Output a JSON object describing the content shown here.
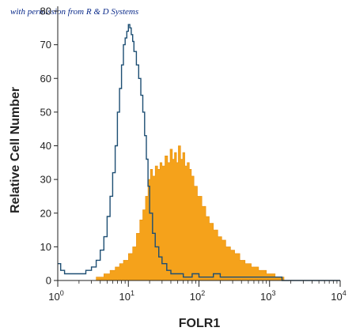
{
  "watermark": "with permission from R & D Systems",
  "chart_data": {
    "type": "area",
    "xlabel": "FOLR1",
    "ylabel": "Relative Cell Number",
    "x_scale": "log",
    "xlim": [
      1,
      10000
    ],
    "ylim": [
      0,
      80
    ],
    "x_ticks": [
      {
        "value": 1,
        "base": "10",
        "exp": "0"
      },
      {
        "value": 10,
        "base": "10",
        "exp": "1"
      },
      {
        "value": 100,
        "base": "10",
        "exp": "2"
      },
      {
        "value": 1000,
        "base": "10",
        "exp": "3"
      },
      {
        "value": 10000,
        "base": "10",
        "exp": "4"
      }
    ],
    "y_ticks": [
      "0",
      "10",
      "20",
      "30",
      "40",
      "50",
      "60",
      "70",
      "80"
    ],
    "series": [
      {
        "style": "filled",
        "color": "#f5a21b",
        "x": [
          1,
          2.5,
          3.5,
          4.5,
          5.5,
          6.5,
          7.5,
          8.5,
          10,
          11.5,
          13,
          14.5,
          16,
          17.5,
          19,
          20.5,
          22,
          24,
          26,
          28,
          30,
          33,
          36,
          39,
          42,
          45,
          48,
          51,
          55,
          59,
          63,
          68,
          73,
          78,
          85,
          95,
          110,
          125,
          140,
          160,
          185,
          210,
          240,
          280,
          320,
          380,
          450,
          550,
          700,
          900,
          1200,
          1600,
          10000
        ],
        "y": [
          0,
          0,
          1,
          2,
          3,
          4,
          5,
          6,
          8,
          10,
          14,
          18,
          21,
          25,
          30,
          33,
          31,
          34,
          33,
          35,
          34,
          37,
          35,
          39,
          36,
          38,
          35,
          40,
          36,
          38,
          34,
          35,
          33,
          31,
          28,
          25,
          22,
          19,
          17,
          15,
          13,
          12,
          10,
          9,
          8,
          6,
          5,
          4,
          3,
          2,
          1,
          0,
          0
        ]
      },
      {
        "style": "outline",
        "color": "#1d4e73",
        "x": [
          1,
          1.1,
          1.25,
          1.5,
          2,
          2.5,
          3,
          3.5,
          4,
          4.5,
          5,
          5.5,
          6,
          6.5,
          7,
          7.5,
          8,
          8.5,
          9,
          9.5,
          10,
          10.5,
          11,
          11.5,
          12,
          13,
          14,
          15,
          16,
          17,
          18,
          19,
          20,
          22,
          24,
          27,
          30,
          35,
          40,
          50,
          60,
          70,
          80,
          100,
          130,
          160,
          200,
          300,
          400,
          600,
          1000,
          1500,
          2000,
          10000
        ],
        "y": [
          5,
          3,
          2,
          2,
          2,
          3,
          4,
          6,
          9,
          13,
          19,
          25,
          32,
          40,
          50,
          57,
          64,
          70,
          72,
          74,
          76,
          75,
          73,
          71,
          68,
          64,
          60,
          55,
          50,
          43,
          36,
          28,
          20,
          14,
          10,
          7,
          5,
          3,
          2,
          2,
          1,
          1,
          2,
          1,
          1,
          2,
          1,
          1,
          1,
          1,
          1,
          0,
          0,
          0
        ]
      }
    ]
  }
}
